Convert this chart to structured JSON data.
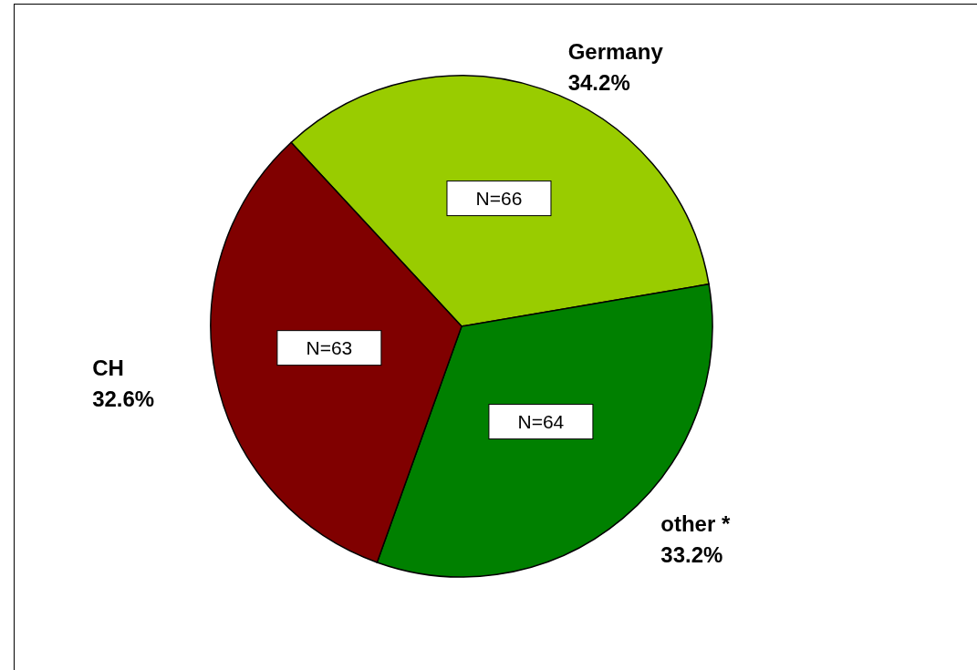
{
  "chart_data": {
    "type": "pie",
    "categories": [
      "Germany",
      "other *",
      "CH"
    ],
    "values": [
      66,
      64,
      63
    ],
    "colors": [
      "#99cc00",
      "#008000",
      "#800000"
    ],
    "value_labels": [
      "N=66",
      "N=64",
      "N=63"
    ],
    "annotations": [
      "34.2%",
      "33.2%",
      "32.6%"
    ]
  }
}
